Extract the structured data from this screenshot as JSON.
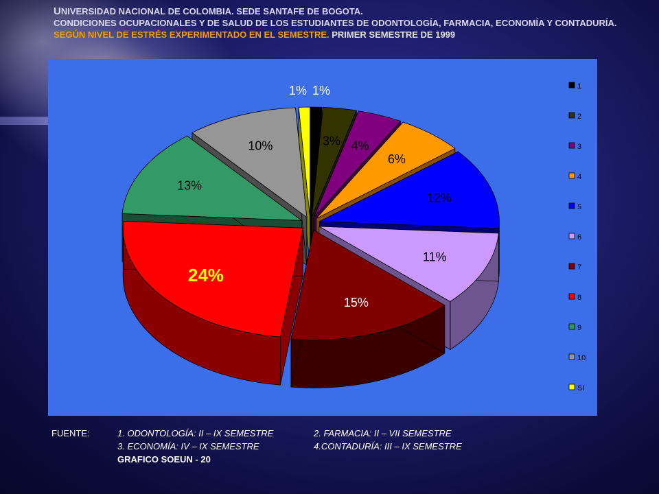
{
  "header": {
    "line1_first": "U",
    "line1_rest": "NIVERSIDAD NACIONAL DE COLOMBIA. SEDE SANTAFE DE BOGOTA.",
    "line2": "CONDICIONES OCUPACIONALES Y DE SALUD DE LOS ESTUDIANTES DE ODONTOLOGÍA, FARMACIA, ECONOMÍA Y CONTADURÍA.",
    "line3_part1": "SEGÚN NIVEL DE ESTRÉS EXPERIMENTADO EN EL SEMESTRE.",
    "line3_part2": " PRIMER SEMESTRE DE 1999"
  },
  "chart_data": {
    "type": "pie",
    "title": "",
    "categories": [
      "1",
      "2",
      "3",
      "4",
      "5",
      "6",
      "7",
      "8",
      "9",
      "10",
      "SI"
    ],
    "values": [
      1,
      3,
      4,
      6,
      12,
      11,
      15,
      24,
      13,
      10,
      1
    ],
    "labels": [
      "1%",
      "3%",
      "4%",
      "6%",
      "12%",
      "11%",
      "15%",
      "24%",
      "13%",
      "10%",
      "1%"
    ],
    "colors": [
      "#000000",
      "#333300",
      "#800080",
      "#ff9900",
      "#0000ff",
      "#cc99ff",
      "#800000",
      "#ff0000",
      "#339966",
      "#969696",
      "#ffff00"
    ],
    "side_colors": [
      "#000000",
      "#1c1c00",
      "#400040",
      "#8a5200",
      "#00007a",
      "#6e5590",
      "#3a0000",
      "#8a0000",
      "#1a4d33",
      "#4d4d4d",
      "#8a8a00"
    ],
    "label_colors": [
      "#000000",
      "#000000",
      "#000000",
      "#000000",
      "#000000",
      "#000000",
      "#ffffff",
      "#ffff00",
      "#000000",
      "#000000",
      "#ffffff"
    ],
    "background": "#3b6ee8",
    "legend_position": "right",
    "exploded": true
  },
  "footer": {
    "label": "FUENTE:",
    "item1": "1. ODONTOLOGÍA: II  – IX SEMESTRE",
    "item2": "2. FARMACIA: II  – VII SEMESTRE",
    "item3": "3. ECONOMÍA: IV – IX SEMESTRE",
    "item4": "4.CONTADURÍA:  III – IX SEMESTRE",
    "item5": "GRAFICO SOEUN - 20"
  }
}
